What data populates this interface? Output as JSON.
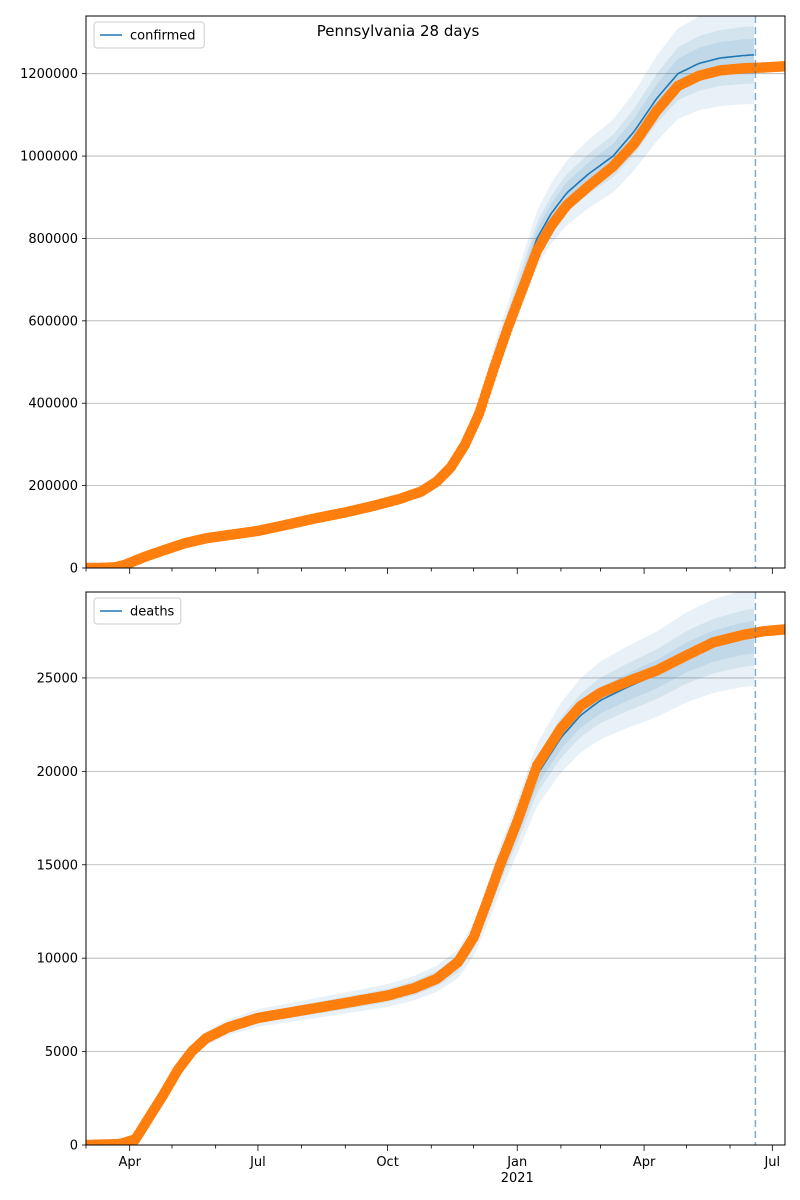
{
  "chart_data": [
    {
      "type": "line",
      "title": "Pennsylvania 28 days",
      "legend": {
        "entries": [
          "confirmed"
        ],
        "placement": "top-left"
      },
      "grid": "horizontal",
      "x_range": [
        "2020-03-01",
        "2021-07-10"
      ],
      "ylim": [
        0,
        1340000
      ],
      "y_ticks": [
        0,
        200000,
        400000,
        600000,
        800000,
        1000000,
        1200000
      ],
      "forecast_start": "2021-06-19",
      "colors": {
        "model": "#1f77b4",
        "observed": "#ff7f0e",
        "band": "#1f77b4"
      },
      "series": [
        {
          "name": "confirmed",
          "kind": "model-mean",
          "points": [
            [
              "2020-03-01",
              0
            ],
            [
              "2020-03-15",
              500
            ],
            [
              "2020-03-22",
              2000
            ],
            [
              "2020-03-29",
              8000
            ],
            [
              "2020-04-10",
              25000
            ],
            [
              "2020-04-25",
              43000
            ],
            [
              "2020-05-10",
              60000
            ],
            [
              "2020-05-25",
              72000
            ],
            [
              "2020-06-10",
              80000
            ],
            [
              "2020-07-01",
              90000
            ],
            [
              "2020-07-20",
              104000
            ],
            [
              "2020-08-10",
              120000
            ],
            [
              "2020-09-01",
              135000
            ],
            [
              "2020-09-20",
              150000
            ],
            [
              "2020-10-10",
              168000
            ],
            [
              "2020-10-25",
              186000
            ],
            [
              "2020-11-05",
              210000
            ],
            [
              "2020-11-15",
              245000
            ],
            [
              "2020-11-25",
              300000
            ],
            [
              "2020-12-05",
              380000
            ],
            [
              "2020-12-15",
              490000
            ],
            [
              "2020-12-25",
              590000
            ],
            [
              "2021-01-05",
              700000
            ],
            [
              "2021-01-15",
              800000
            ],
            [
              "2021-01-25",
              860000
            ],
            [
              "2021-02-05",
              910000
            ],
            [
              "2021-02-20",
              955000
            ],
            [
              "2021-03-10",
              1000000
            ],
            [
              "2021-03-25",
              1060000
            ],
            [
              "2021-04-10",
              1140000
            ],
            [
              "2021-04-25",
              1200000
            ],
            [
              "2021-05-10",
              1225000
            ],
            [
              "2021-05-25",
              1238000
            ],
            [
              "2021-06-10",
              1244000
            ],
            [
              "2021-06-19",
              1246000
            ]
          ],
          "bands": [
            {
              "lower": [
                1120000,
                1200000,
                1200000
              ],
              "upper": [
                1300000,
                1340000,
                1340000
              ],
              "through": [
                "2021-04-10",
                "2021-05-25",
                "2021-06-19"
              ]
            }
          ]
        },
        {
          "name": "confirmed (observed)",
          "kind": "observed",
          "points": [
            [
              "2020-03-01",
              0
            ],
            [
              "2020-03-15",
              500
            ],
            [
              "2020-03-22",
              2000
            ],
            [
              "2020-03-29",
              8000
            ],
            [
              "2020-04-10",
              25000
            ],
            [
              "2020-04-25",
              43000
            ],
            [
              "2020-05-10",
              60000
            ],
            [
              "2020-05-25",
              72000
            ],
            [
              "2020-06-10",
              80000
            ],
            [
              "2020-07-01",
              90000
            ],
            [
              "2020-07-20",
              104000
            ],
            [
              "2020-08-10",
              120000
            ],
            [
              "2020-09-01",
              135000
            ],
            [
              "2020-09-20",
              150000
            ],
            [
              "2020-10-10",
              168000
            ],
            [
              "2020-10-25",
              186000
            ],
            [
              "2020-11-05",
              210000
            ],
            [
              "2020-11-15",
              245000
            ],
            [
              "2020-11-25",
              300000
            ],
            [
              "2020-12-05",
              375000
            ],
            [
              "2020-12-15",
              480000
            ],
            [
              "2020-12-25",
              580000
            ],
            [
              "2021-01-05",
              680000
            ],
            [
              "2021-01-15",
              770000
            ],
            [
              "2021-01-25",
              830000
            ],
            [
              "2021-02-05",
              880000
            ],
            [
              "2021-02-20",
              925000
            ],
            [
              "2021-03-10",
              975000
            ],
            [
              "2021-03-25",
              1030000
            ],
            [
              "2021-04-10",
              1110000
            ],
            [
              "2021-04-25",
              1170000
            ],
            [
              "2021-05-10",
              1195000
            ],
            [
              "2021-05-25",
              1208000
            ],
            [
              "2021-06-10",
              1213000
            ],
            [
              "2021-06-25",
              1215000
            ],
            [
              "2021-07-10",
              1218000
            ]
          ]
        }
      ]
    },
    {
      "type": "line",
      "title": "",
      "legend": {
        "entries": [
          "deaths"
        ],
        "placement": "top-left"
      },
      "grid": "horizontal",
      "x_range": [
        "2020-03-01",
        "2021-07-10"
      ],
      "ylim": [
        0,
        29600
      ],
      "y_ticks": [
        0,
        5000,
        10000,
        15000,
        20000,
        25000
      ],
      "x_ticks": [
        {
          "label": "Apr",
          "date": "2020-04-01"
        },
        {
          "label": "Jul",
          "date": "2020-07-01"
        },
        {
          "label": "Oct",
          "date": "2020-10-01"
        },
        {
          "label": "Jan",
          "sublabel": "2021",
          "date": "2021-01-01"
        },
        {
          "label": "Apr",
          "date": "2021-04-01"
        },
        {
          "label": "Jul",
          "date": "2021-07-01"
        }
      ],
      "forecast_start": "2021-06-19",
      "colors": {
        "model": "#1f77b4",
        "observed": "#ff7f0e",
        "band": "#1f77b4"
      },
      "series": [
        {
          "name": "deaths",
          "kind": "model-mean",
          "points": [
            [
              "2020-03-01",
              0
            ],
            [
              "2020-03-25",
              50
            ],
            [
              "2020-04-05",
              300
            ],
            [
              "2020-04-15",
              1500
            ],
            [
              "2020-04-25",
              2700
            ],
            [
              "2020-05-05",
              4000
            ],
            [
              "2020-05-15",
              5000
            ],
            [
              "2020-05-25",
              5700
            ],
            [
              "2020-06-10",
              6300
            ],
            [
              "2020-07-01",
              6800
            ],
            [
              "2020-08-01",
              7200
            ],
            [
              "2020-09-01",
              7600
            ],
            [
              "2020-10-01",
              8000
            ],
            [
              "2020-10-20",
              8400
            ],
            [
              "2020-11-05",
              8900
            ],
            [
              "2020-11-20",
              9700
            ],
            [
              "2020-12-01",
              11000
            ],
            [
              "2020-12-10",
              12700
            ],
            [
              "2020-12-20",
              14800
            ],
            [
              "2021-01-01",
              17000
            ],
            [
              "2021-01-15",
              19800
            ],
            [
              "2021-02-01",
              21800
            ],
            [
              "2021-02-15",
              23000
            ],
            [
              "2021-03-01",
              23800
            ],
            [
              "2021-03-20",
              24500
            ],
            [
              "2021-04-10",
              25200
            ],
            [
              "2021-05-01",
              26100
            ],
            [
              "2021-05-20",
              26700
            ],
            [
              "2021-06-10",
              27100
            ],
            [
              "2021-06-19",
              27200
            ]
          ]
        },
        {
          "name": "deaths (observed)",
          "kind": "observed",
          "points": [
            [
              "2020-03-01",
              0
            ],
            [
              "2020-03-25",
              50
            ],
            [
              "2020-04-05",
              300
            ],
            [
              "2020-04-15",
              1500
            ],
            [
              "2020-04-25",
              2700
            ],
            [
              "2020-05-05",
              4000
            ],
            [
              "2020-05-15",
              5000
            ],
            [
              "2020-05-25",
              5700
            ],
            [
              "2020-06-10",
              6300
            ],
            [
              "2020-07-01",
              6800
            ],
            [
              "2020-08-01",
              7200
            ],
            [
              "2020-09-01",
              7600
            ],
            [
              "2020-10-01",
              8000
            ],
            [
              "2020-10-20",
              8400
            ],
            [
              "2020-11-05",
              8900
            ],
            [
              "2020-11-20",
              9800
            ],
            [
              "2020-12-01",
              11100
            ],
            [
              "2020-12-10",
              12900
            ],
            [
              "2020-12-20",
              15000
            ],
            [
              "2021-01-01",
              17300
            ],
            [
              "2021-01-15",
              20300
            ],
            [
              "2021-02-01",
              22300
            ],
            [
              "2021-02-15",
              23500
            ],
            [
              "2021-03-01",
              24200
            ],
            [
              "2021-03-20",
              24800
            ],
            [
              "2021-04-10",
              25400
            ],
            [
              "2021-05-01",
              26200
            ],
            [
              "2021-05-20",
              26900
            ],
            [
              "2021-06-10",
              27300
            ],
            [
              "2021-06-25",
              27500
            ],
            [
              "2021-07-10",
              27600
            ]
          ]
        }
      ]
    }
  ]
}
